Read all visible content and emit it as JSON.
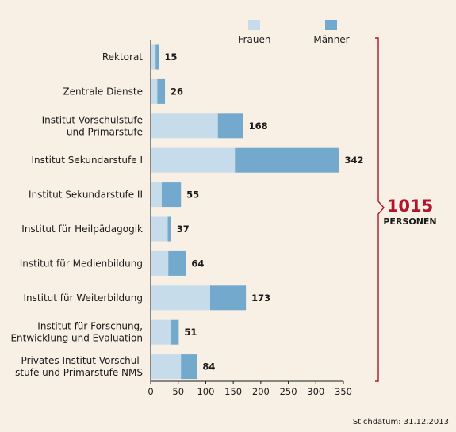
{
  "colors": {
    "background": "#f8f0e4",
    "frauen": "#c7dcea",
    "maenner": "#72a9cd",
    "accent": "#b0152b",
    "axis": "#1a1a1a"
  },
  "chart_data": {
    "type": "bar",
    "orientation": "horizontal",
    "stacked": true,
    "categories": [
      [
        "Rektorat"
      ],
      [
        "Zentrale Dienste"
      ],
      [
        "Institut Vorschulstufe",
        "und Primarstufe"
      ],
      [
        "Institut Sekundarstufe I"
      ],
      [
        "Institut Sekundarstufe II"
      ],
      [
        "Institut für Heilpädagogik"
      ],
      [
        "Institut für Medienbildung"
      ],
      [
        "Institut für Weiterbildung"
      ],
      [
        "Institut für Forschung,",
        "Entwicklung und Evaluation"
      ],
      [
        "Privates Institut Vorschul-",
        "stufe und Primarstufe NMS"
      ]
    ],
    "series": [
      {
        "name": "Frauen",
        "values": [
          9,
          12,
          122,
          153,
          20,
          31,
          32,
          108,
          37,
          55
        ]
      },
      {
        "name": "Männer",
        "values": [
          6,
          14,
          46,
          189,
          35,
          6,
          32,
          65,
          14,
          29
        ]
      }
    ],
    "totals": [
      15,
      26,
      168,
      342,
      55,
      37,
      64,
      173,
      51,
      84
    ],
    "xlim": [
      0,
      350
    ],
    "xticks": [
      0,
      50,
      100,
      150,
      200,
      250,
      300,
      350
    ],
    "grid": false,
    "legend": "top"
  },
  "summary": {
    "total": "1015",
    "unit": "PERSONEN"
  },
  "footnote": "Stichdatum: 31.12.2013"
}
